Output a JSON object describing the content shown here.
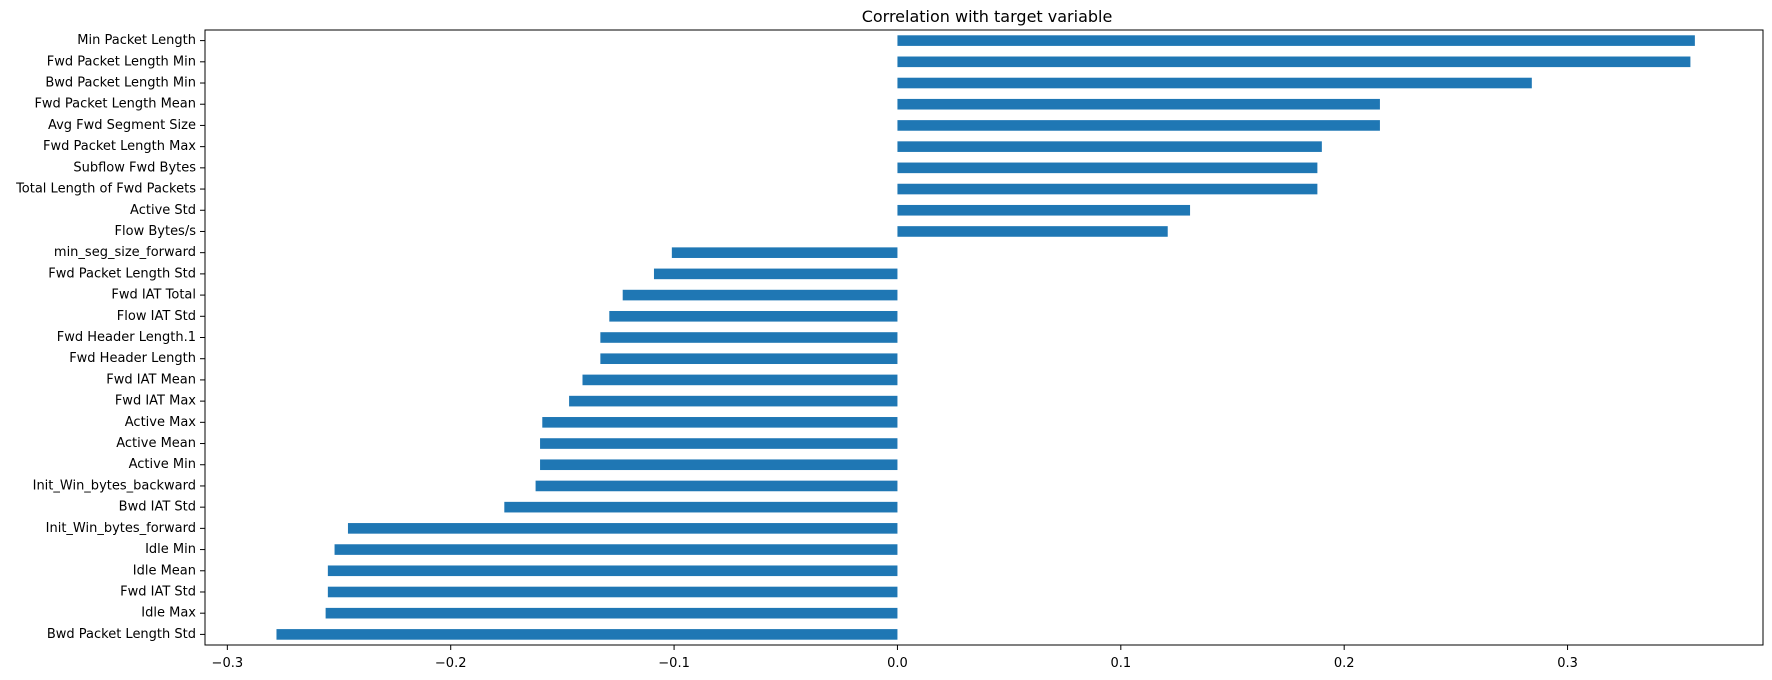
{
  "chart_data": {
    "type": "bar",
    "orientation": "horizontal",
    "title": "Correlation with target variable",
    "xlabel": "",
    "ylabel": "",
    "xlim": [
      -0.31,
      0.3875
    ],
    "grid": false,
    "legend": "none",
    "bar_color": "#1f77b4",
    "x_ticks": [
      -0.3,
      -0.2,
      -0.1,
      0.0,
      0.1,
      0.2,
      0.3
    ],
    "x_tick_labels": [
      "−0.3",
      "−0.2",
      "−0.1",
      "0.0",
      "0.1",
      "0.2",
      "0.3"
    ],
    "categories": [
      "Min Packet Length",
      "Fwd Packet Length Min",
      "Bwd Packet Length Min",
      "Fwd Packet Length Mean",
      "Avg Fwd Segment Size",
      "Fwd Packet Length Max",
      "Subflow Fwd Bytes",
      "Total Length of Fwd Packets",
      "Active Std",
      "Flow Bytes/s",
      "min_seg_size_forward",
      "Fwd Packet Length Std",
      "Fwd IAT Total",
      "Flow IAT Std",
      "Fwd Header Length.1",
      "Fwd Header Length",
      "Fwd IAT Mean",
      "Fwd IAT Max",
      "Active Max",
      "Active Mean",
      "Active Min",
      "Init_Win_bytes_backward",
      "Bwd IAT Std",
      "Init_Win_bytes_forward",
      "Idle Min",
      "Idle Mean",
      "Fwd IAT Std",
      "Idle Max",
      "Bwd Packet Length Std"
    ],
    "values": [
      0.357,
      0.355,
      0.284,
      0.216,
      0.216,
      0.19,
      0.188,
      0.188,
      0.131,
      0.121,
      -0.101,
      -0.109,
      -0.123,
      -0.129,
      -0.133,
      -0.133,
      -0.141,
      -0.147,
      -0.159,
      -0.16,
      -0.16,
      -0.162,
      -0.176,
      -0.246,
      -0.252,
      -0.255,
      -0.255,
      -0.256,
      -0.278
    ]
  }
}
